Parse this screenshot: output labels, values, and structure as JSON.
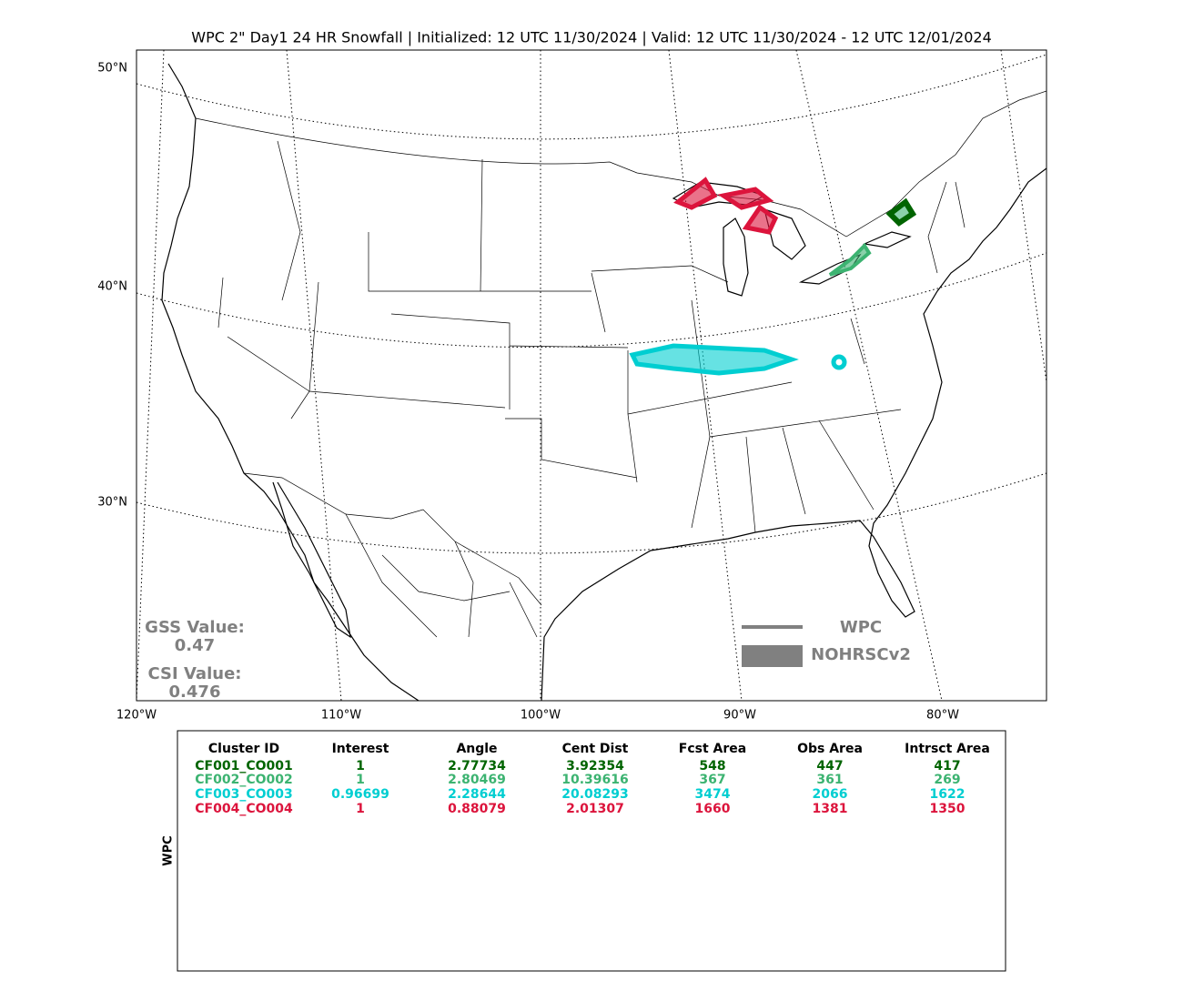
{
  "title": "WPC 2\" Day1 24 HR Snowfall | Initialized: 12 UTC 11/30/2024 | Valid: 12 UTC 11/30/2024 - 12 UTC 12/01/2024",
  "map": {
    "lat_labels": [
      "50°N",
      "40°N",
      "30°N"
    ],
    "lon_labels": [
      "120°W",
      "110°W",
      "100°W",
      "90°W",
      "80°W"
    ],
    "gss": {
      "label": "GSS Value:",
      "value": "0.47"
    },
    "csi": {
      "label": "CSI Value:",
      "value": "0.476"
    },
    "legend": {
      "line": "WPC",
      "area": "NOHRSCv2"
    }
  },
  "table": {
    "side_label": "WPC",
    "headers": [
      "Cluster ID",
      "Interest",
      "Angle",
      "Cent Dist",
      "Fcst Area",
      "Obs Area",
      "Intrsct Area"
    ],
    "rows": [
      {
        "color": "#006400",
        "cells": [
          "CF001_CO001",
          "1",
          "2.77734",
          "3.92354",
          "548",
          "447",
          "417"
        ]
      },
      {
        "color": "#3cb371",
        "cells": [
          "CF002_CO002",
          "1",
          "2.80469",
          "10.39616",
          "367",
          "361",
          "269"
        ]
      },
      {
        "color": "#00ced1",
        "cells": [
          "CF003_CO003",
          "0.96699",
          "2.28644",
          "20.08293",
          "3474",
          "2066",
          "1622"
        ]
      },
      {
        "color": "#dc143c",
        "cells": [
          "CF004_CO004",
          "1",
          "0.88079",
          "2.01307",
          "1660",
          "1381",
          "1350"
        ]
      }
    ]
  }
}
